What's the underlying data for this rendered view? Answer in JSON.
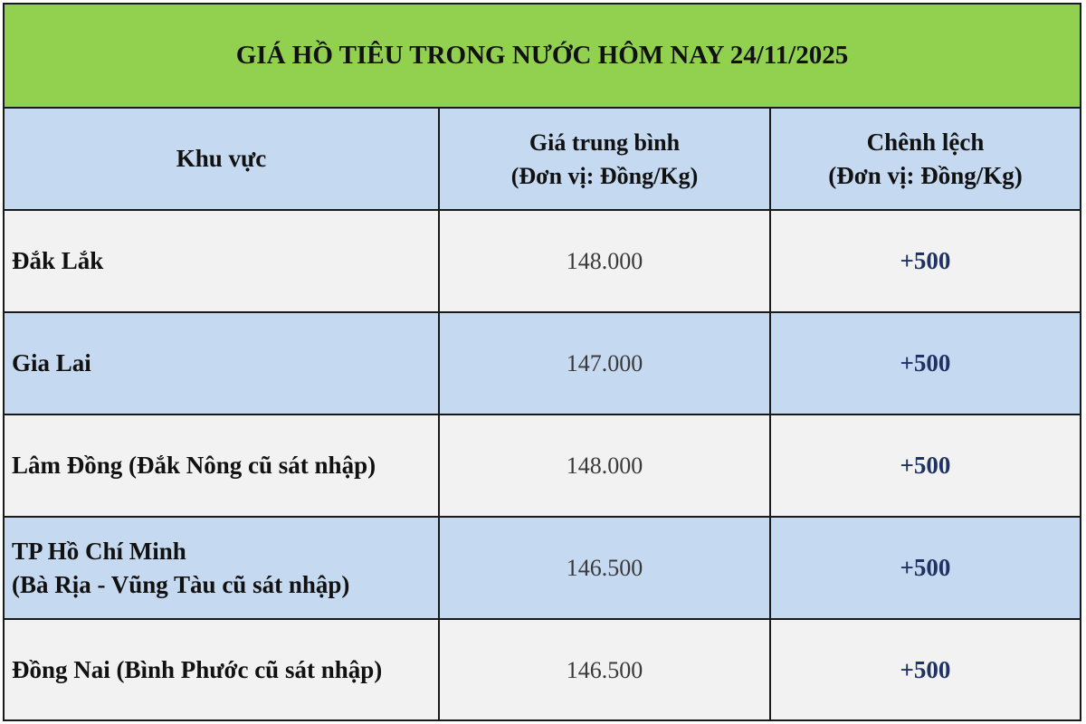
{
  "title": "GIÁ HỒ TIÊU TRONG NƯỚC HÔM NAY 24/11/2025",
  "colors": {
    "title_bg": "#92d050",
    "header_bg": "#c5d9f1",
    "alt_row_bg": "#c5d9f1",
    "row_bg": "#f2f2f2",
    "change_text": "#1f3264"
  },
  "columns": [
    {
      "line1": "Khu vực",
      "line2": ""
    },
    {
      "line1": "Giá trung bình",
      "line2": "(Đơn vị: Đồng/Kg)"
    },
    {
      "line1": "Chênh lệch",
      "line2": "(Đơn vị: Đồng/Kg)"
    }
  ],
  "rows": [
    {
      "region": "Đắk Lắk",
      "region2": "",
      "price": "148.000",
      "change": "+500"
    },
    {
      "region": "Gia Lai",
      "region2": "",
      "price": "147.000",
      "change": "+500"
    },
    {
      "region": "Lâm Đồng (Đắk Nông cũ sát nhập)",
      "region2": "",
      "price": "148.000",
      "change": "+500"
    },
    {
      "region": "TP Hồ Chí Minh",
      "region2": "(Bà Rịa - Vũng Tàu cũ sát nhập)",
      "price": "146.500",
      "change": "+500"
    },
    {
      "region": "Đồng Nai (Bình Phước cũ sát nhập)",
      "region2": "",
      "price": "146.500",
      "change": "+500"
    }
  ]
}
